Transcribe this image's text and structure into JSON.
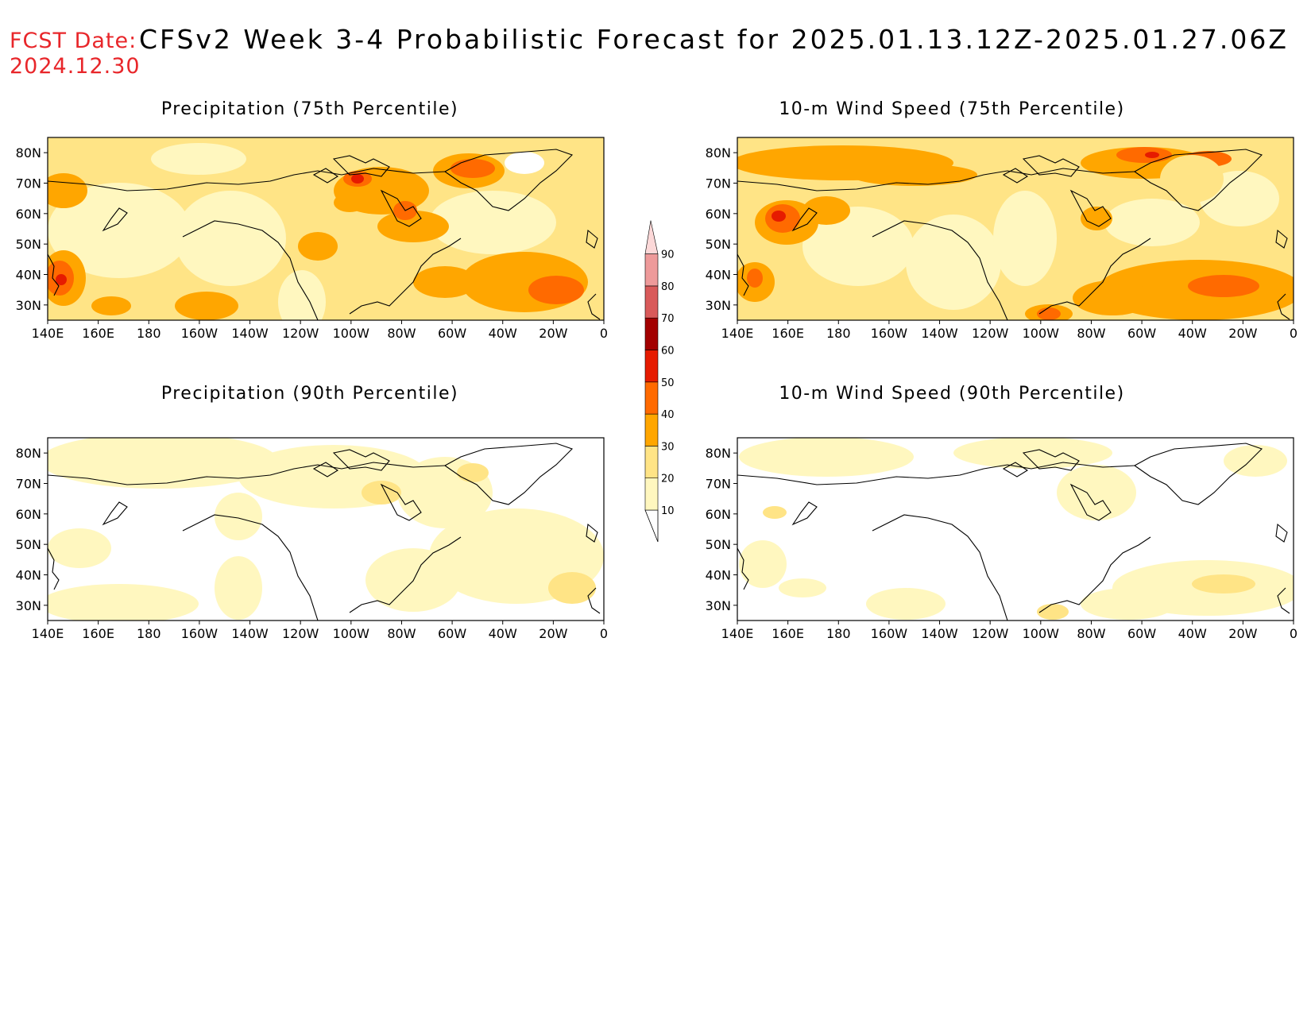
{
  "header": {
    "fcst_label": "FCST Date:",
    "fcst_date": "2024.12.30",
    "title": "CFSv2 Week 3-4 Probabilistic Forecast for 2025.01.13.12Z-2025.01.27.06Z"
  },
  "panels": [
    {
      "title": "Precipitation (75th Percentile)"
    },
    {
      "title": "10-m Wind Speed (75th Percentile)"
    },
    {
      "title": "Precipitation (90th Percentile)"
    },
    {
      "title": "10-m Wind Speed (90th Percentile)"
    }
  ],
  "axes": {
    "lon_labels": [
      "140E",
      "160E",
      "180",
      "160W",
      "140W",
      "120W",
      "100W",
      "80W",
      "60W",
      "40W",
      "20W",
      "0"
    ],
    "lat_labels": [
      "80N",
      "70N",
      "60N",
      "50N",
      "40N",
      "30N"
    ]
  },
  "colorbar": {
    "levels": [
      "10",
      "20",
      "30",
      "40",
      "50",
      "60",
      "70",
      "80",
      "90"
    ],
    "colors": [
      "#fff7bf",
      "#ffe486",
      "#ffa600",
      "#ff6a00",
      "#e61b00",
      "#a30000",
      "#d95a5a",
      "#ee9a9a",
      "#fcd8d8"
    ]
  },
  "palette": {
    "light": "#fff7bf",
    "yellow": "#ffe486",
    "orange": "#ffa600",
    "dark_orange": "#ff6a00",
    "red": "#e61b00",
    "dark_red": "#a30000"
  },
  "fcst_color": "#e8262a"
}
